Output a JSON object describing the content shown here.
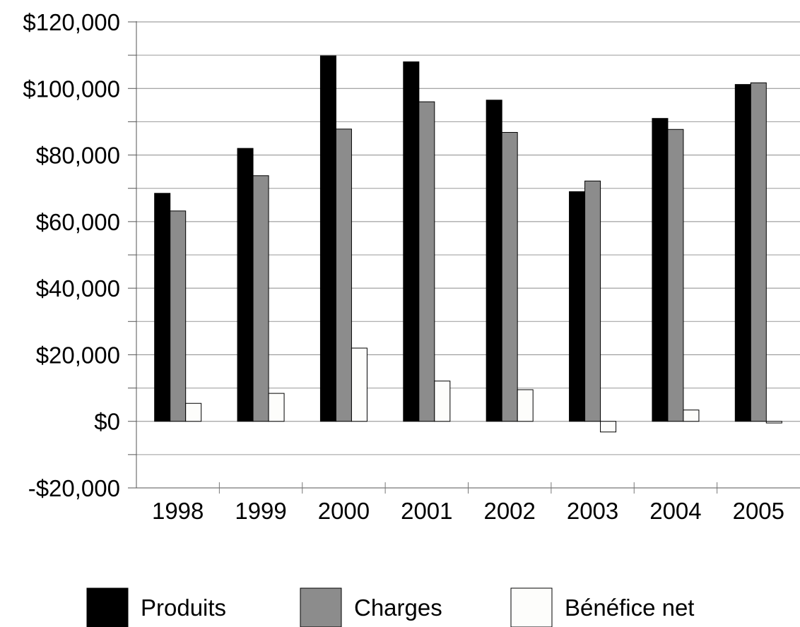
{
  "chart_data": {
    "type": "bar",
    "title": "",
    "xlabel": "",
    "ylabel": "",
    "categories": [
      "1998",
      "1999",
      "2000",
      "2001",
      "2002",
      "2003",
      "2004",
      "2005"
    ],
    "series": [
      {
        "name": "Produits",
        "color": "#000000",
        "values": [
          68500,
          82000,
          109800,
          108000,
          96500,
          69000,
          91000,
          101200
        ]
      },
      {
        "name": "Charges",
        "color": "#8c8c8c",
        "values": [
          63200,
          73800,
          87800,
          96000,
          86800,
          72200,
          87700,
          101700
        ]
      },
      {
        "name": "Bénéfice net",
        "color": "#fdfdfb",
        "values": [
          5400,
          8400,
          22000,
          12100,
          9500,
          -3200,
          3400,
          -500
        ]
      }
    ],
    "ylim": [
      -20000,
      120000
    ],
    "yticks": [
      -20000,
      0,
      20000,
      40000,
      60000,
      80000,
      100000,
      120000
    ],
    "ytick_labels": [
      "-$20,000",
      "$0",
      "$20,000",
      "$40,000",
      "$60,000",
      "$80,000",
      "$100,000",
      "$120,000"
    ],
    "grid": true,
    "legend": {
      "position": "bottom"
    }
  }
}
